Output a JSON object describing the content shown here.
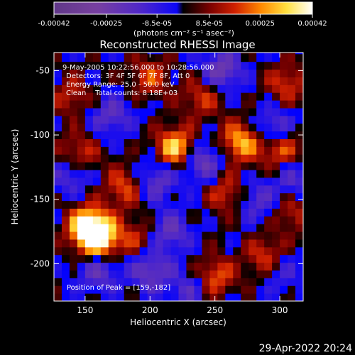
{
  "chart_data": {
    "type": "heatmap",
    "title": "Reconstructed RHESSI Image",
    "xlabel": "Heliocentric X (arcsec)",
    "ylabel": "Heliocentric Y (arcsec)",
    "xlim": [
      126,
      318
    ],
    "ylim": [
      -229,
      -36
    ],
    "x_ticks": [
      150,
      200,
      250,
      300
    ],
    "y_ticks": [
      -50,
      -100,
      -150,
      -200
    ],
    "grid": false,
    "colorbar": {
      "position": "top",
      "range": [
        -0.00042,
        0.00042
      ],
      "tick_labels": [
        "-0.00042",
        "-0.00025",
        "-8.5e-05",
        "8.5e-05",
        "0.00025",
        "0.00042"
      ],
      "label": "(photons cm⁻² s⁻¹ asec⁻²)",
      "colors_negative": [
        "#0000ff",
        "#5028c8",
        "#7840a0",
        "#603888"
      ],
      "colors_positive": [
        "#000000",
        "#780000",
        "#d02000",
        "#ff8800",
        "#ffe040",
        "#ffffff"
      ]
    },
    "annotations": {
      "time_range": "9-May-2005 10:22:56.000 to 10:28:56.000",
      "detectors": "Detectors: 3F 4F 5F 6F 7F 8F, Att 0",
      "energy": "Energy Range: 25.0 - 50.0 keV",
      "clean": "Clean    Total counts: 8.18E+03",
      "peak": "Position of Peak = [159,-182]"
    },
    "peak_position": [
      159,
      -182
    ],
    "peak_value": 0.00042,
    "hot_spots": [
      {
        "x": 160,
        "y": -180,
        "value": 0.00042
      },
      {
        "x": 152,
        "y": -170,
        "value": 0.00035
      },
      {
        "x": 220,
        "y": -110,
        "value": 0.00035
      },
      {
        "x": 270,
        "y": -105,
        "value": 0.0003
      },
      {
        "x": 300,
        "y": -110,
        "value": 0.00025
      },
      {
        "x": 250,
        "y": -210,
        "value": 0.00022
      },
      {
        "x": 290,
        "y": -195,
        "value": 0.00022
      },
      {
        "x": 180,
        "y": -140,
        "value": 0.0002
      },
      {
        "x": 145,
        "y": -115,
        "value": 0.0002
      },
      {
        "x": 260,
        "y": -145,
        "value": 0.0002
      },
      {
        "x": 200,
        "y": -55,
        "value": 0.00018
      },
      {
        "x": 240,
        "y": -70,
        "value": 0.00018
      },
      {
        "x": 305,
        "y": -60,
        "value": 0.00018
      },
      {
        "x": 140,
        "y": -70,
        "value": 0.00015
      },
      {
        "x": 190,
        "y": -180,
        "value": 0.00015
      },
      {
        "x": 310,
        "y": -160,
        "value": 0.00015
      }
    ],
    "cold_spots": [
      {
        "x": 240,
        "y": -120,
        "value": -0.00025
      },
      {
        "x": 255,
        "y": -50,
        "value": -0.00025
      },
      {
        "x": 295,
        "y": -95,
        "value": -0.00022
      },
      {
        "x": 200,
        "y": -205,
        "value": -0.00022
      },
      {
        "x": 215,
        "y": -175,
        "value": -0.0002
      },
      {
        "x": 160,
        "y": -205,
        "value": -0.0002
      },
      {
        "x": 205,
        "y": -135,
        "value": -0.0002
      },
      {
        "x": 170,
        "y": -85,
        "value": -0.00018
      },
      {
        "x": 280,
        "y": -150,
        "value": -0.00018
      },
      {
        "x": 140,
        "y": -130,
        "value": -0.00018
      },
      {
        "x": 300,
        "y": -205,
        "value": -0.00015
      },
      {
        "x": 310,
        "y": -135,
        "value": -0.00015
      },
      {
        "x": 230,
        "y": -220,
        "value": -0.00015
      }
    ]
  },
  "footer_timestamp": "29-Apr-2022 20:24"
}
